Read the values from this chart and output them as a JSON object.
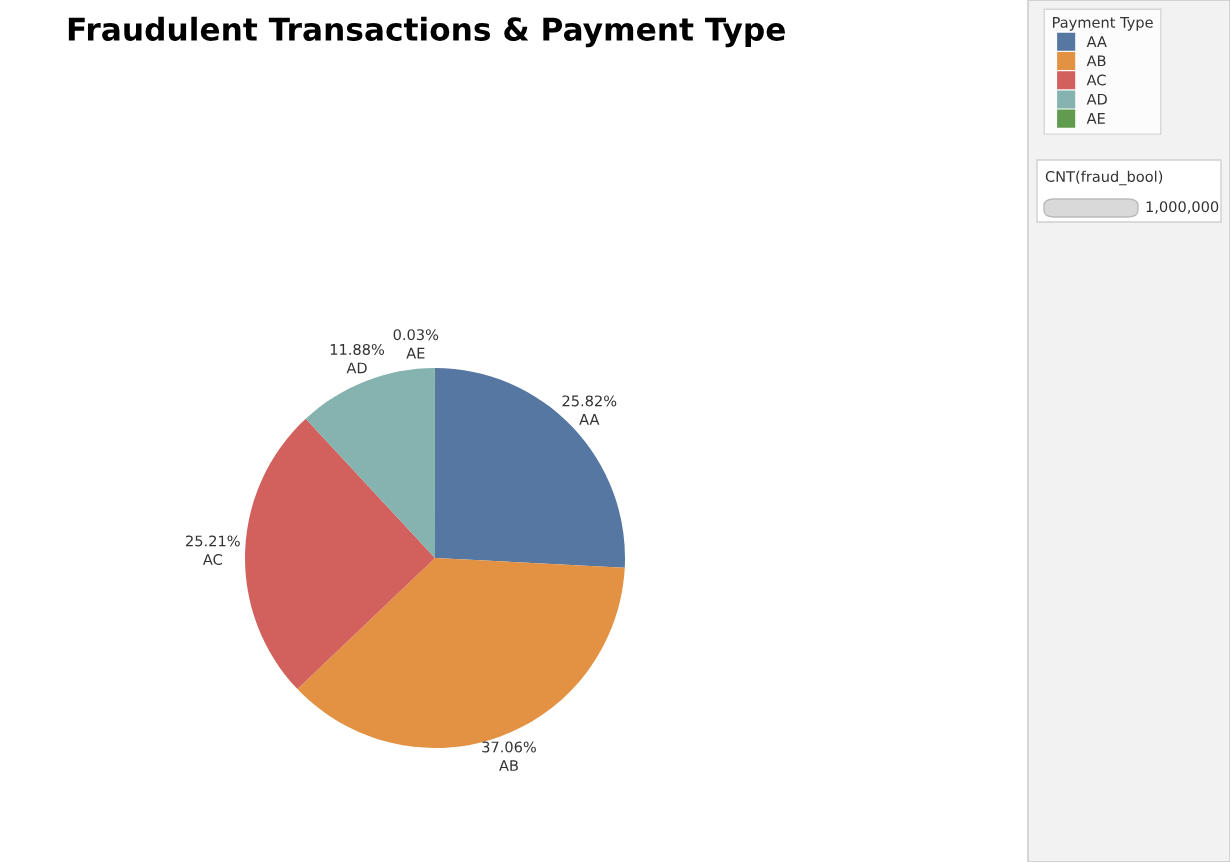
{
  "chart_data": {
    "type": "pie",
    "title": "Fraudulent Transactions & Payment Type",
    "categories": [
      "AA",
      "AB",
      "AC",
      "AD",
      "AE"
    ],
    "values": [
      25.82,
      37.06,
      25.21,
      11.88,
      0.03
    ],
    "colors": [
      "#5577a1",
      "#e39143",
      "#d2605d",
      "#84b3b0",
      "#619b4f"
    ],
    "value_labels": [
      "25.82%",
      "37.06%",
      "25.21%",
      "11.88%",
      "0.03%"
    ],
    "legend": "right",
    "legend_title": "Payment Type",
    "annotations": [
      "CNT(fraud_bool)",
      "1,000,000"
    ]
  }
}
